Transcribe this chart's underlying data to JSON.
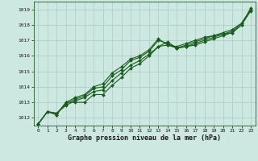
{
  "background_color": "#cce8e0",
  "grid_color": "#a8ccc4",
  "line_color": "#1a5c1a",
  "xlabel": "Graphe pression niveau de la mer (hPa)",
  "ylim": [
    1011.5,
    1019.5
  ],
  "xlim": [
    -0.5,
    23.5
  ],
  "yticks": [
    1012,
    1013,
    1014,
    1015,
    1016,
    1017,
    1018,
    1019
  ],
  "xticks": [
    0,
    1,
    2,
    3,
    4,
    5,
    6,
    7,
    8,
    9,
    10,
    11,
    12,
    13,
    14,
    15,
    16,
    17,
    18,
    19,
    20,
    21,
    22,
    23
  ],
  "series": [
    [
      1011.6,
      1012.4,
      1012.3,
      1012.8,
      1013.1,
      1013.3,
      1013.7,
      1013.8,
      1014.4,
      1014.9,
      1015.4,
      1015.7,
      1016.1,
      1016.6,
      1016.7,
      1016.5,
      1016.6,
      1016.7,
      1016.9,
      1017.1,
      1017.3,
      1017.5,
      1018.0,
      1018.9
    ],
    [
      1011.6,
      1012.4,
      1012.3,
      1012.9,
      1013.2,
      1013.4,
      1013.9,
      1014.0,
      1014.7,
      1015.1,
      1015.7,
      1015.9,
      1016.3,
      1017.0,
      1016.8,
      1016.5,
      1016.7,
      1016.9,
      1017.1,
      1017.3,
      1017.4,
      1017.6,
      1018.1,
      1019.0
    ],
    [
      1011.6,
      1012.4,
      1012.2,
      1013.0,
      1013.3,
      1013.5,
      1014.0,
      1014.2,
      1014.9,
      1015.3,
      1015.8,
      1016.0,
      1016.4,
      1017.1,
      1016.7,
      1016.6,
      1016.8,
      1017.0,
      1017.2,
      1017.3,
      1017.5,
      1017.7,
      1018.1,
      1019.0
    ],
    [
      1011.6,
      1012.4,
      1012.2,
      1013.0,
      1013.0,
      1013.0,
      1013.5,
      1013.5,
      1014.1,
      1014.6,
      1015.2,
      1015.5,
      1016.0,
      1016.6,
      1016.9,
      1016.5,
      1016.6,
      1016.8,
      1017.0,
      1017.2,
      1017.4,
      1017.5,
      1018.0,
      1019.1
    ]
  ]
}
